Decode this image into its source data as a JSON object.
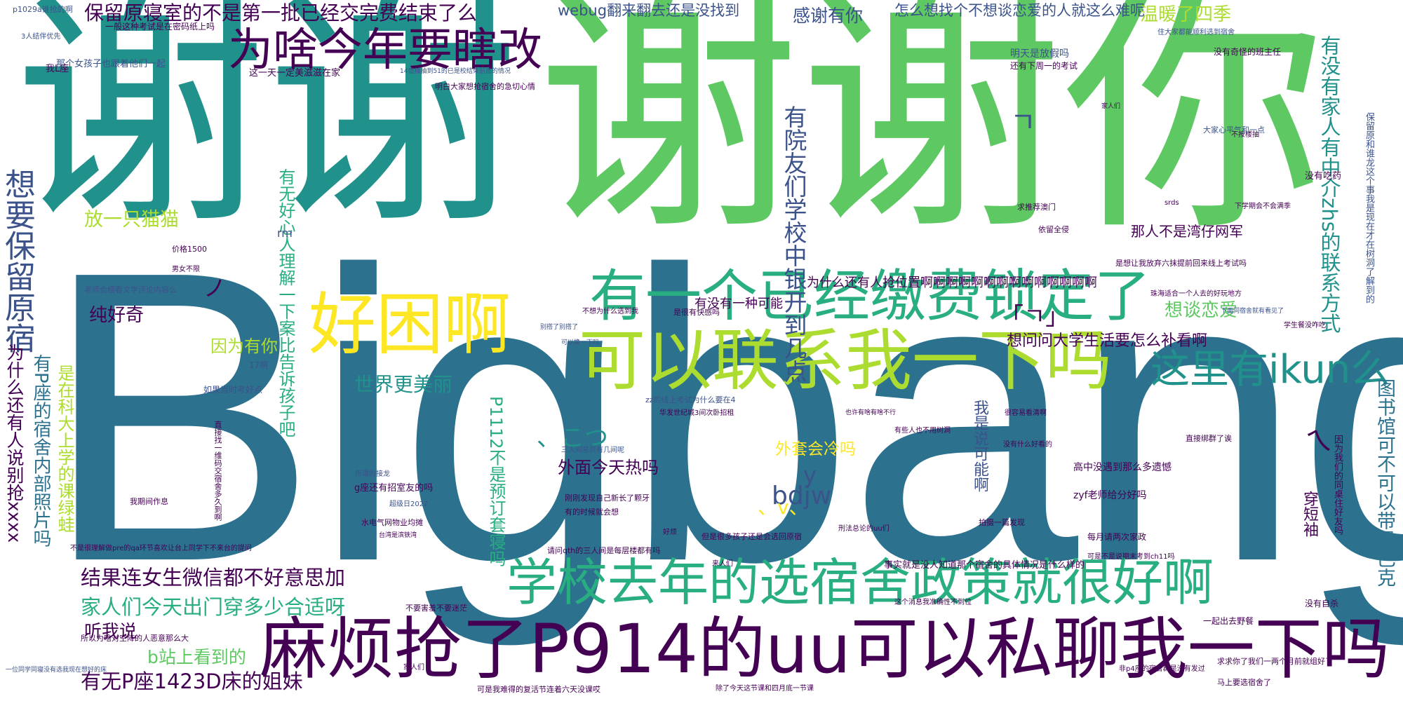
{
  "palette": {
    "dark_purple": "#440154",
    "indigo": "#3b528b",
    "blue": "#2c728e",
    "teal": "#21918c",
    "green": "#28ae80",
    "light_green": "#5ec962",
    "lime": "#addc30",
    "yellow": "#fde725"
  },
  "words": {
    "bigbang": "Bigbang",
    "xiexie": "谢谢",
    "xiexieni": "谢谢你",
    "baoliu": "想要保留原宿",
    "jiaofei": "有一个已经缴费锁定了",
    "lianxi": "可以联系我一下吗",
    "mafan": "麻烦抢了P914的uu可以私聊我一下吗",
    "xuexiao": "学校去年的选宿舍政策就很好啊",
    "haokun": "好困啊",
    "weisha": "为啥今年要瞎改",
    "ikun": "这里有ikun么",
    "baoliuyuan": "保留原寝室的不是第一批已经交完费结束了么",
    "jieguo": "结果连女生微信都不好意思加",
    "jiaren": "家人们今天出门穿多少合适呀",
    "youwu": "有无P座1423D床的姐妹",
    "youyuan": "有院友们学校中银开到几点",
    "youmeiyou": "有没有家人有中介zhs的联系方式",
    "tushuguan": "图书馆可不可以带星巴克",
    "qiangxxxx": "为什么还有人说别抢xxxx",
    "youpzuo": "有P座的宿舍内部照片吗",
    "kele": "是在科大上学的课绿蛙",
    "ganxie": "感谢有你",
    "webug": "webug翻来翻去还是没找到",
    "zenme": "怎么想找个不想谈恋爱的人就这么难呢",
    "wennuan": "温暖了四季",
    "fang": "放一只猫猫",
    "chun": "纯好奇",
    "yinwei": "因为有你",
    "shijie": "世界更美丽",
    "xiangtan": "想谈恋爱",
    "xiangwen": "想问问大学生活要怎么补看啊",
    "tingwo": "听我说",
    "bzhan": "b站上看到的",
    "bdjw": "bdjw",
    "yv": "y",
    "haoxin": "有无好心人理解一下案比告诉孩子吧",
    "p1112": "P1112不是预订套寝吗",
    "woshi": "我是说可能啊",
    "chuan": "穿短袖",
    "waimian": "外面今天热吗",
    "waitao": "外套会冷吗",
    "weishenme": "为什么还有人抢位置啊啊啊啊啊啊啊啊啊啊啊啊啊啊",
    "youmeiyouyi": "有没有一种可能",
    "naren": "那人不是湾仔网军",
    "wanghou": "明天是放假吗",
    "kaomoji1": "、こつ",
    "kaomoji2": "、v、",
    "kaomoji3": "「ㄱ」",
    "kaomoji4": "ㄱ",
    "kaomoji5": "ノ",
    "kaomoji6": "ㄟ",
    "small": [
      "p1029a谁抢的啊",
      "3人结伴优先",
      "我L座",
      "那个女孩子也跟着他们一起",
      "一般这种考试是在密码纸上吗",
      "这一天一定美滋滋在家",
      "14億抽抽到51的已是校结束前面的情况",
      "明白大家想抢宿舍的急切心情",
      "还有下周一的考试",
      "住大家都能顺利选到宿舍",
      "没有奇怪的班主任",
      "学生餐没咋吃",
      "不按楼抽",
      "没有吃药",
      "下学期会不会满季",
      "是想让我放弃六抹提前回来线上考试吗",
      "保留原和谁龙这个事我是现在才在树洞了解到的",
      "珠海适合一个人去的好玩地方",
      "下面同宿舍就有看见了",
      "价格1500",
      "男女不限",
      "老师会细看文学评论内容么",
      "如果当时考好点",
      "我期间作息",
      "直接找一维码交宿舍多久到啊",
      "不是很理解做pre的qa环节喜欢让台上同学下不来台的提问",
      "所以为啥对空降的人恶意那么大",
      "zz的线上考试为什么要在4",
      "华发世纪城3间次卧招租",
      "g座还有招室友的吗",
      "三人间总共有几间呢",
      "刚刚发现自己新长了颗牙",
      "有的时候就会想",
      "超级日2022",
      "水电气网物业均摊",
      "台湾是滨铁湾",
      "请问qth的三人间是每层楼都有吗",
      "但是很多孩子还是会选回原宿",
      "刑法总论的uu们",
      "事实就是没人知道那个宿舍的具体情况是什么样的",
      "高中没遇到那么多遗憾",
      "zyf老师给分好吗",
      "每月请两次家政",
      "可是不是说期末考到ch11吗",
      "一起出去野餐",
      "没有自杀",
      "马上要选宿舍了",
      "非p4座的宿舍群是没有发过",
      "除了今天这节课和四月底一节课",
      "可是我难得的复活节连着六天没课哎",
      "一位同学同寝没有选我现在想好的床",
      "拍摄一篇发现",
      "这个消息我准确性不到位",
      "很容易看清啊",
      "有些人也不用树洞",
      "也许有啥有啥不行",
      "17啊",
      "rm",
      "srds",
      "家人们",
      "求推荐澳门",
      "依留全侵",
      "可以换一下吗",
      "别搭了别搭了",
      "不想为什么选到我",
      "是很有快感吗",
      "好烦",
      "家人们",
      "不要害羞不要迷茫",
      "所谓的接龙",
      "直接绑群了诶",
      "因为我们的同桌住好友吗",
      "大家心平气和一点",
      "来人们",
      "求求你了我们一两个月前就组好了",
      "没有什么好看的"
    ]
  }
}
